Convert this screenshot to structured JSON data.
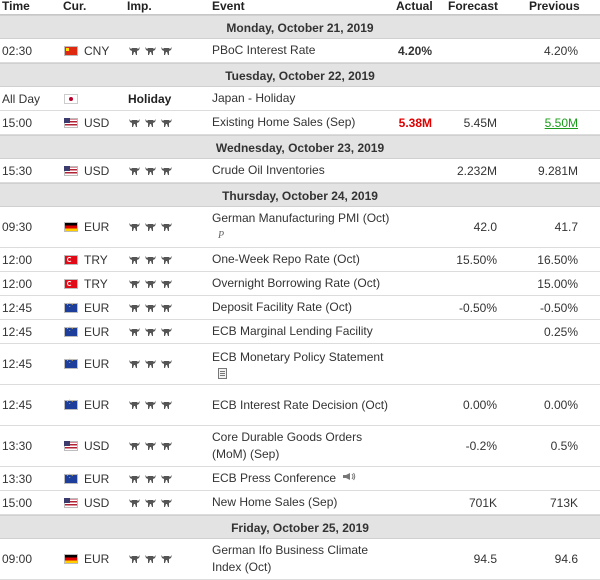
{
  "headers": {
    "time": "Time",
    "cur": "Cur.",
    "imp": "Imp.",
    "event": "Event",
    "actual": "Actual",
    "forecast": "Forecast",
    "previous": "Previous"
  },
  "colors": {
    "negative": "#e00000",
    "positive": "#1a9c1a",
    "day_bg": "#e3e3e3"
  },
  "days": [
    {
      "label": "Monday, October 21, 2019",
      "rows": [
        {
          "time": "02:30",
          "flag": "cn",
          "cur": "CNY",
          "imp": 3,
          "event": "PBoC Interest Rate",
          "actual": "4.20%",
          "forecast": "",
          "previous": "4.20%"
        }
      ]
    },
    {
      "label": "Tuesday, October 22, 2019",
      "rows": [
        {
          "time": "All Day",
          "flag": "jp",
          "cur": "",
          "imp": 0,
          "imp_text": "Holiday",
          "event": "Japan - Holiday",
          "actual": "",
          "forecast": "",
          "previous": ""
        },
        {
          "time": "15:00",
          "flag": "us",
          "cur": "USD",
          "imp": 3,
          "event": "Existing Home Sales (Sep)",
          "actual": "5.38M",
          "actual_color": "red",
          "forecast": "5.45M",
          "previous": "5.50M",
          "previous_color": "green"
        }
      ]
    },
    {
      "label": "Wednesday, October 23, 2019",
      "rows": [
        {
          "time": "15:30",
          "flag": "us",
          "cur": "USD",
          "imp": 3,
          "event": "Crude Oil Inventories",
          "actual": "",
          "forecast": "2.232M",
          "previous": "9.281M"
        }
      ]
    },
    {
      "label": "Thursday, October 24, 2019",
      "rows": [
        {
          "time": "09:30",
          "flag": "de",
          "cur": "EUR",
          "imp": 3,
          "event": "German Manufacturing PMI (Oct)",
          "event_icon": "P",
          "actual": "",
          "forecast": "42.0",
          "previous": "41.7",
          "tall": true
        },
        {
          "time": "12:00",
          "flag": "tr",
          "cur": "TRY",
          "imp": 3,
          "event": "One-Week Repo Rate (Oct)",
          "actual": "",
          "forecast": "15.50%",
          "previous": "16.50%"
        },
        {
          "time": "12:00",
          "flag": "tr",
          "cur": "TRY",
          "imp": 3,
          "event": "Overnight Borrowing Rate (Oct)",
          "actual": "",
          "forecast": "",
          "previous": "15.00%"
        },
        {
          "time": "12:45",
          "flag": "eu",
          "cur": "EUR",
          "imp": 3,
          "event": "Deposit Facility Rate (Oct)",
          "actual": "",
          "forecast": "-0.50%",
          "previous": "-0.50%"
        },
        {
          "time": "12:45",
          "flag": "eu",
          "cur": "EUR",
          "imp": 3,
          "event": "ECB Marginal Lending Facility",
          "actual": "",
          "forecast": "",
          "previous": "0.25%"
        },
        {
          "time": "12:45",
          "flag": "eu",
          "cur": "EUR",
          "imp": 3,
          "event": "ECB Monetary Policy Statement",
          "event_icon": "doc",
          "actual": "",
          "forecast": "",
          "previous": "",
          "tall": true
        },
        {
          "time": "12:45",
          "flag": "eu",
          "cur": "EUR",
          "imp": 3,
          "event": "ECB Interest Rate Decision (Oct)",
          "actual": "",
          "forecast": "0.00%",
          "previous": "0.00%",
          "tall": true
        },
        {
          "time": "13:30",
          "flag": "us",
          "cur": "USD",
          "imp": 3,
          "event": "Core Durable Goods Orders (MoM) (Sep)",
          "actual": "",
          "forecast": "-0.2%",
          "previous": "0.5%",
          "tall": true
        },
        {
          "time": "13:30",
          "flag": "eu",
          "cur": "EUR",
          "imp": 3,
          "event": "ECB Press Conference",
          "event_icon": "speaker",
          "actual": "",
          "forecast": "",
          "previous": ""
        },
        {
          "time": "15:00",
          "flag": "us",
          "cur": "USD",
          "imp": 3,
          "event": "New Home Sales (Sep)",
          "actual": "",
          "forecast": "701K",
          "previous": "713K"
        }
      ]
    },
    {
      "label": "Friday, October 25, 2019",
      "rows": [
        {
          "time": "09:00",
          "flag": "de",
          "cur": "EUR",
          "imp": 3,
          "event": "German Ifo Business Climate Index (Oct)",
          "actual": "",
          "forecast": "94.5",
          "previous": "94.6",
          "tall": true
        }
      ]
    }
  ]
}
